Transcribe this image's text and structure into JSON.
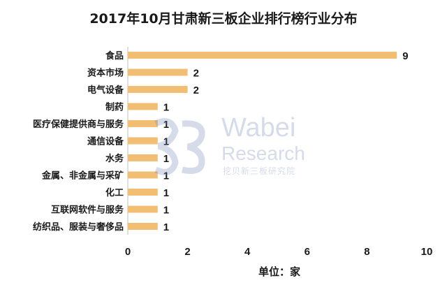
{
  "chart_data": {
    "type": "bar",
    "orientation": "horizontal",
    "title": "2017年10月甘肃新三板企业排行榜行业分布",
    "xlabel": "单位：家",
    "ylabel": "",
    "categories": [
      "食品",
      "资本市场",
      "电气设备",
      "制药",
      "医疗保健提供商与服务",
      "通信设备",
      "水务",
      "金属、非金属与采矿",
      "化工",
      "互联网软件与服务",
      "纺织品、服装与奢侈品"
    ],
    "values": [
      9,
      2,
      2,
      1,
      1,
      1,
      1,
      1,
      1,
      1,
      1
    ],
    "xlim": [
      0,
      10
    ],
    "xticks": [
      0,
      2,
      4,
      6,
      8,
      10
    ],
    "grid": false,
    "bar_color": "#F2BE74",
    "data_labels": true
  },
  "watermark": {
    "line1": "Wabei",
    "line2": "Research",
    "line3": "挖贝新三板研究院",
    "color": "#6a7fb0"
  }
}
